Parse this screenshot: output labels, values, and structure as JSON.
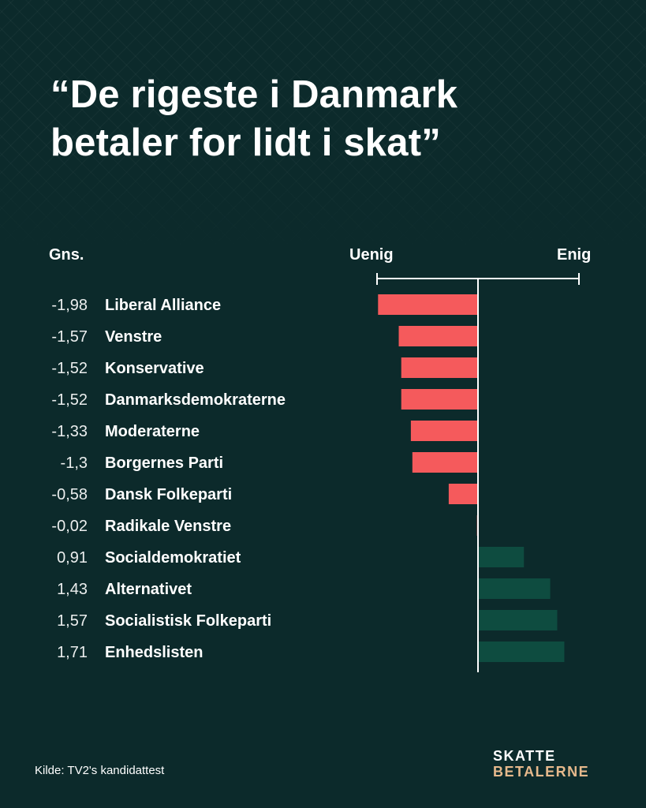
{
  "title": {
    "line1": "“De rigeste i Danmark",
    "line2": "betaler for lidt i skat”"
  },
  "headers": {
    "avg": "Gns.",
    "disagree": "Uenig",
    "agree": "Enig"
  },
  "colors": {
    "background": "#0c2a2b",
    "negative": "#f55a5c",
    "positive": "#0e4c40",
    "axis": "#ffffff",
    "logo_accent": "#e6b98c"
  },
  "chart_data": {
    "type": "bar",
    "orientation": "horizontal",
    "categories": [
      "Liberal Alliance",
      "Venstre",
      "Konservative",
      "Danmarksdemokraterne",
      "Moderaterne",
      "Borgernes Parti",
      "Dansk Folkeparti",
      "Radikale Venstre",
      "Socialdemokratiet",
      "Alternativet",
      "Socialistisk Folkeparti",
      "Enhedslisten"
    ],
    "values": [
      -1.98,
      -1.57,
      -1.52,
      -1.52,
      -1.33,
      -1.3,
      -0.58,
      -0.02,
      0.91,
      1.43,
      1.57,
      1.71
    ],
    "value_labels": [
      "-1,98",
      "-1,57",
      "-1,52",
      "-1,52",
      "-1,33",
      "-1,3",
      "-0,58",
      "-0,02",
      "0,91",
      "1,43",
      "1,57",
      "1,71"
    ],
    "xlim": [
      -2,
      2
    ],
    "grid": false
  },
  "footer": {
    "source": "Kilde: TV2's kandidattest",
    "logo_line1": "SKATTE",
    "logo_line2": "BETALERNE"
  }
}
